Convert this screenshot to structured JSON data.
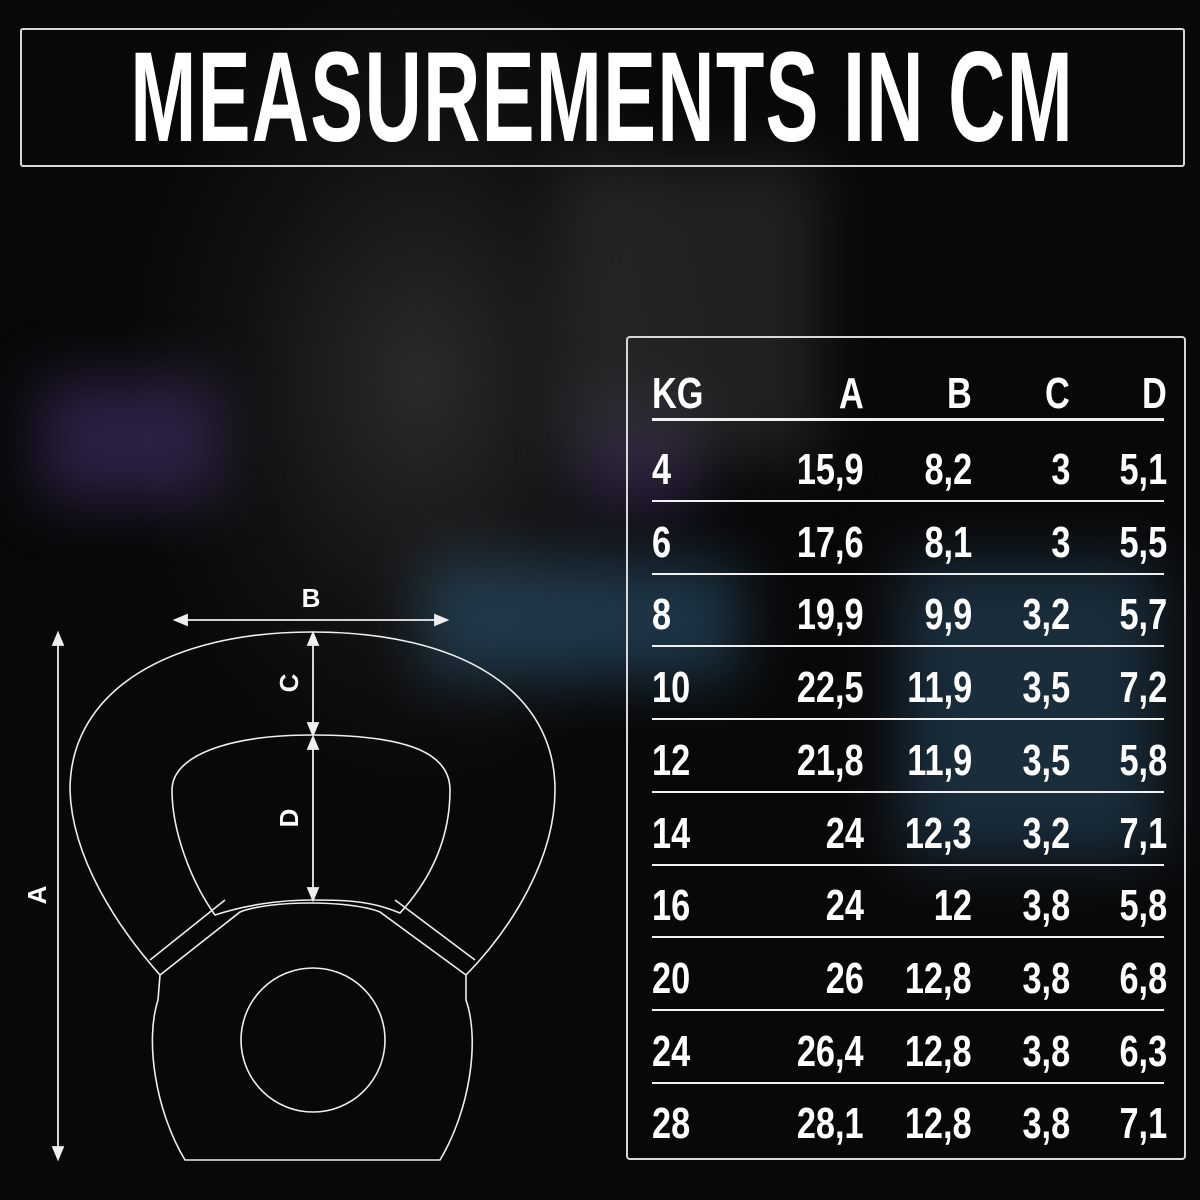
{
  "title": "MEASUREMENTS IN CM",
  "diagram": {
    "label_a": "A",
    "label_b": "B",
    "label_c": "C",
    "label_d": "D"
  },
  "table": {
    "headers": [
      "KG",
      "A",
      "B",
      "C",
      "D"
    ],
    "rows": [
      [
        "4",
        "15,9",
        "8,2",
        "3",
        "5,1"
      ],
      [
        "6",
        "17,6",
        "8,1",
        "3",
        "5,5"
      ],
      [
        "8",
        "19,9",
        "9,9",
        "3,2",
        "5,7"
      ],
      [
        "10",
        "22,5",
        "11,9",
        "3,5",
        "7,2"
      ],
      [
        "12",
        "21,8",
        "11,9",
        "3,5",
        "5,8"
      ],
      [
        "14",
        "24",
        "12,3",
        "3,2",
        "7,1"
      ],
      [
        "16",
        "24",
        "12",
        "3,8",
        "5,8"
      ],
      [
        "20",
        "26",
        "12,8",
        "3,8",
        "6,8"
      ],
      [
        "24",
        "26,4",
        "12,8",
        "3,8",
        "6,3"
      ],
      [
        "28",
        "28,1",
        "12,8",
        "3,8",
        "7,1"
      ]
    ]
  },
  "colors": {
    "background": "#0a0a0a",
    "text": "#ffffff",
    "accent_blue": "#2e5a7a",
    "accent_purple": "#4a2a6a"
  }
}
